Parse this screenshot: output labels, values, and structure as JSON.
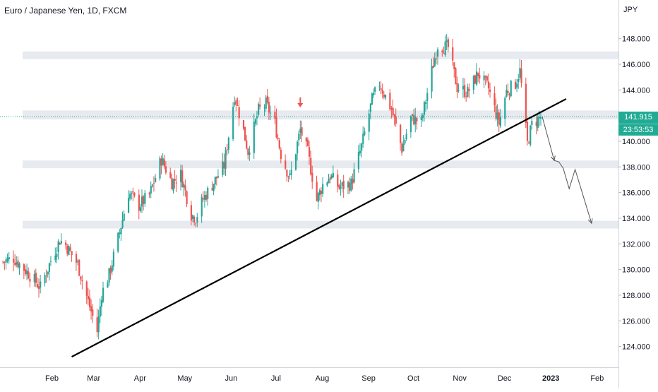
{
  "title": "Euro / Japanese Yen, 1D, FXCM",
  "currency": "JPY",
  "current_price": "141.915",
  "countdown": "23:53:53",
  "colors": {
    "up": "#26a69a",
    "down": "#ef5350",
    "price_tag": "#22ab94",
    "zone": "#e3e6ec",
    "trendline": "#000000",
    "projection": "#555555",
    "marker": "#ef5350"
  },
  "chart_data": {
    "type": "candlestick",
    "symbol": "Euro / Japanese Yen",
    "interval": "1D",
    "source": "FXCM",
    "x_labels": [
      "Feb",
      "Mar",
      "Apr",
      "May",
      "Jun",
      "Jul",
      "Aug",
      "Sep",
      "Oct",
      "Nov",
      "Dec",
      "2023",
      "Feb"
    ],
    "y_ticks": [
      124,
      126,
      128,
      130,
      132,
      134,
      136,
      138,
      140,
      142,
      144,
      146,
      148
    ],
    "y_tick_labels": [
      "124.000",
      "126.000",
      "128.000",
      "130.000",
      "132.000",
      "134.000",
      "136.000",
      "138.000",
      "140.000",
      "142.000",
      "144.000",
      "146.000",
      "148.000"
    ],
    "ylim": [
      122.6,
      149.8
    ],
    "xlim": [
      "2022-01-01",
      "2023-02-19"
    ],
    "last_price": 141.915,
    "close_path": [
      [
        "2022-01-03",
        130.6
      ],
      [
        "2022-01-10",
        130.9
      ],
      [
        "2022-01-20",
        129.7
      ],
      [
        "2022-01-28",
        128.6
      ],
      [
        "2022-02-04",
        130.7
      ],
      [
        "2022-02-10",
        132.3
      ],
      [
        "2022-02-14",
        131.9
      ],
      [
        "2022-02-22",
        130.4
      ],
      [
        "2022-03-01",
        127.5
      ],
      [
        "2022-03-07",
        125.2
      ],
      [
        "2022-03-10",
        128.1
      ],
      [
        "2022-03-15",
        129.6
      ],
      [
        "2022-03-22",
        132.9
      ],
      [
        "2022-03-28",
        136.0
      ],
      [
        "2022-04-04",
        135.0
      ],
      [
        "2022-04-11",
        135.8
      ],
      [
        "2022-04-19",
        138.6
      ],
      [
        "2022-04-26",
        136.8
      ],
      [
        "2022-05-02",
        137.4
      ],
      [
        "2022-05-09",
        134.3
      ],
      [
        "2022-05-12",
        134.0
      ],
      [
        "2022-05-17",
        135.5
      ],
      [
        "2022-05-24",
        136.8
      ],
      [
        "2022-05-31",
        138.1
      ],
      [
        "2022-06-07",
        143.6
      ],
      [
        "2022-06-13",
        140.8
      ],
      [
        "2022-06-16",
        139.2
      ],
      [
        "2022-06-23",
        142.4
      ],
      [
        "2022-06-28",
        142.9
      ],
      [
        "2022-07-04",
        141.4
      ],
      [
        "2022-07-08",
        139.0
      ],
      [
        "2022-07-14",
        137.1
      ],
      [
        "2022-07-21",
        140.9
      ],
      [
        "2022-07-26",
        139.1
      ],
      [
        "2022-08-01",
        135.4
      ],
      [
        "2022-08-05",
        136.6
      ],
      [
        "2022-08-10",
        137.3
      ],
      [
        "2022-08-16",
        136.4
      ],
      [
        "2022-08-24",
        136.7
      ],
      [
        "2022-08-31",
        139.6
      ],
      [
        "2022-09-07",
        143.2
      ],
      [
        "2022-09-12",
        144.5
      ],
      [
        "2022-09-20",
        142.5
      ],
      [
        "2022-09-27",
        139.4
      ],
      [
        "2022-10-03",
        141.8
      ],
      [
        "2022-10-10",
        141.5
      ],
      [
        "2022-10-17",
        145.5
      ],
      [
        "2022-10-21",
        147.5
      ],
      [
        "2022-10-28",
        147.3
      ],
      [
        "2022-11-03",
        144.2
      ],
      [
        "2022-11-10",
        143.8
      ],
      [
        "2022-11-17",
        145.3
      ],
      [
        "2022-11-24",
        144.1
      ],
      [
        "2022-12-01",
        141.4
      ],
      [
        "2022-12-06",
        143.9
      ],
      [
        "2022-12-12",
        144.5
      ],
      [
        "2022-12-15",
        145.5
      ],
      [
        "2022-12-20",
        139.8
      ],
      [
        "2022-12-23",
        141.3
      ],
      [
        "2022-12-29",
        141.9
      ]
    ],
    "zones": [
      {
        "from": 146.4,
        "to": 147.0
      },
      {
        "from": 141.7,
        "to": 142.4
      },
      {
        "from": 137.9,
        "to": 138.5
      },
      {
        "from": 133.2,
        "to": 133.8
      }
    ],
    "trendline": {
      "from": [
        "2022-02-18",
        123.2
      ],
      "to": [
        "2023-01-15",
        143.3
      ]
    },
    "projection_path": [
      [
        "2022-12-30",
        141.9
      ],
      [
        "2023-01-07",
        138.5
      ],
      [
        "2023-01-10",
        138.4
      ],
      [
        "2023-01-13",
        137.9
      ],
      [
        "2023-01-17",
        136.3
      ],
      [
        "2023-01-21",
        137.8
      ],
      [
        "2023-02-01",
        133.6
      ]
    ],
    "marker": {
      "date": "2022-07-21",
      "price": 142.7
    },
    "current_price_line": 141.915
  }
}
